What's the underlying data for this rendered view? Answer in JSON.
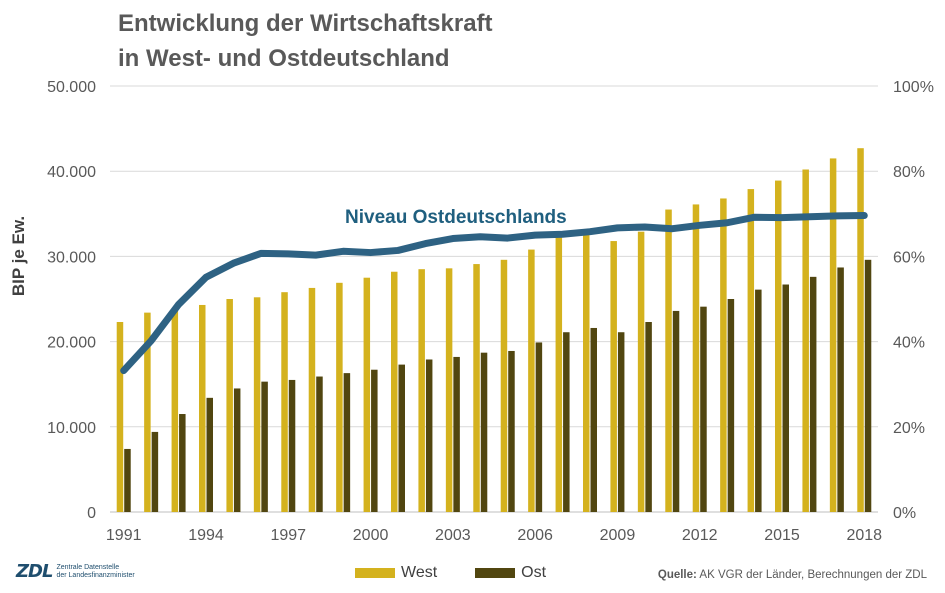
{
  "title_line1": "Entwicklung der Wirtschaftskraft",
  "title_line2": "in West- und Ostdeutschland",
  "logo": {
    "mark": "ZDL",
    "line1": "Zentrale Datenstelle",
    "line2": "der Landesfinanzminister"
  },
  "source": {
    "label": "Quelle:",
    "text": " AK VGR der Länder, Berechnungen der ZDL"
  },
  "colors": {
    "west": "#d4b21e",
    "ost": "#514610",
    "niveau": "#2e6283"
  },
  "chart_data": {
    "type": "bar",
    "title": "Entwicklung der Wirtschaftskraft in West- und Ostdeutschland",
    "ylabel": "BIP je Ew.",
    "ylim": [
      0,
      50000
    ],
    "y2lim": [
      0,
      100
    ],
    "yticks": [
      "0",
      "10.000",
      "20.000",
      "30.000",
      "40.000",
      "50.000"
    ],
    "y2ticks": [
      "0%",
      "20%",
      "40%",
      "60%",
      "80%",
      "100%"
    ],
    "xticks": [
      "1991",
      "1994",
      "1997",
      "2000",
      "2003",
      "2006",
      "2009",
      "2012",
      "2015",
      "2018"
    ],
    "categories": [
      "1991",
      "1992",
      "1993",
      "1994",
      "1995",
      "1996",
      "1997",
      "1998",
      "1999",
      "2000",
      "2001",
      "2002",
      "2003",
      "2004",
      "2005",
      "2006",
      "2007",
      "2008",
      "2009",
      "2010",
      "2011",
      "2012",
      "2013",
      "2014",
      "2015",
      "2016",
      "2017",
      "2018"
    ],
    "series": [
      {
        "name": "West",
        "axis": "left",
        "values": [
          22300,
          23400,
          23600,
          24300,
          25000,
          25200,
          25800,
          26300,
          26900,
          27500,
          28200,
          28500,
          28600,
          29100,
          29600,
          30800,
          32300,
          32700,
          31800,
          32900,
          35500,
          36100,
          36800,
          37900,
          38900,
          40200,
          41500,
          42700
        ]
      },
      {
        "name": "Ost",
        "axis": "left",
        "values": [
          7400,
          9400,
          11500,
          13400,
          14500,
          15300,
          15500,
          15900,
          16300,
          16700,
          17300,
          17900,
          18200,
          18700,
          18900,
          19900,
          21100,
          21600,
          21100,
          22300,
          23600,
          24100,
          25000,
          26100,
          26700,
          27600,
          28700,
          29600
        ]
      },
      {
        "name": "Niveau Ostdeutschlands",
        "axis": "right",
        "type": "line",
        "values": [
          33.2,
          40.2,
          48.7,
          55.1,
          58.4,
          60.7,
          60.6,
          60.3,
          61.2,
          60.9,
          61.4,
          63.0,
          64.2,
          64.6,
          64.3,
          65.0,
          65.2,
          65.8,
          66.7,
          66.9,
          66.5,
          67.3,
          67.9,
          69.2,
          69.1,
          69.3,
          69.5,
          69.6
        ]
      }
    ],
    "annotation": "Niveau Ostdeutschlands",
    "legend": [
      "West",
      "Ost"
    ],
    "legend_position": "bottom"
  }
}
